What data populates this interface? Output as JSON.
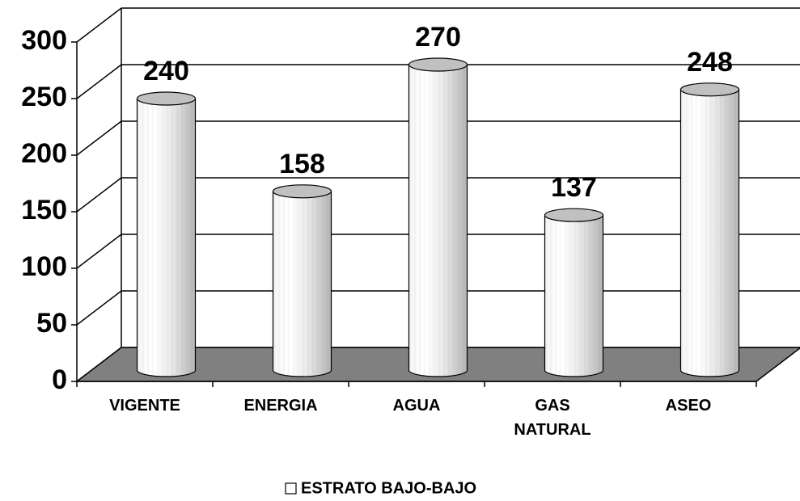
{
  "chart_data": {
    "type": "bar",
    "categories": [
      "VIGENTE",
      "ENERGIA",
      "AGUA",
      "GAS NATURAL",
      "ASEO"
    ],
    "series": [
      {
        "name": "ESTRATO BAJO-BAJO",
        "color": "#ffffff",
        "values": [
          240,
          158,
          270,
          137,
          248
        ]
      }
    ],
    "ylim": [
      0,
      300
    ],
    "yticks": [
      0,
      50,
      100,
      150,
      200,
      250,
      300
    ],
    "grid": true,
    "legend": "bottom"
  }
}
